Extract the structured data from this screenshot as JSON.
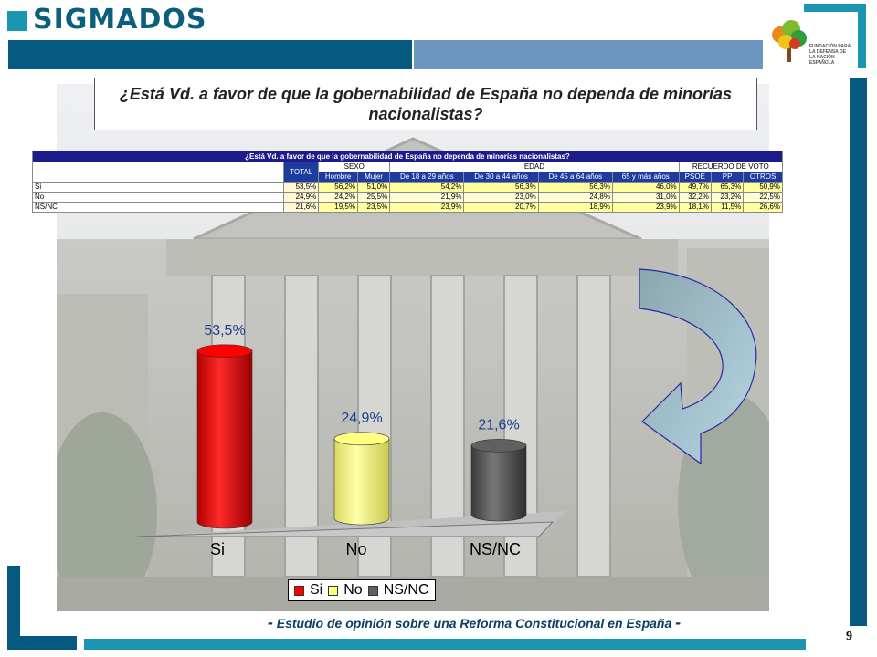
{
  "header": {
    "logo_text": "SIGMADOS"
  },
  "fund_logo": {
    "text": "FUNDACIÓN PARA LA DEFENSA DE LA NACIÓN ESPAÑOLA"
  },
  "question": "¿Está Vd. a favor de que la gobernabilidad de España no dependa de minorías nacionalistas?",
  "table": {
    "title": "¿Está Vd. a favor de que la gobernabilidad de España no dependa de minorías nacionalistas?",
    "total_label": "TOTAL",
    "groups": [
      "SEXO",
      "EDAD",
      "RECUERDO DE VOTO"
    ],
    "columns": [
      "Hombre",
      "Mujer",
      "De 18 a 29 años",
      "De 30 a 44 años",
      "De 45 a 64 años",
      "65 y más años",
      "PSOE",
      "PP",
      "OTROS"
    ],
    "rows": [
      {
        "label": "Si",
        "total": "53,5%",
        "values": [
          "56,2%",
          "51,0%",
          "54,2%",
          "56,3%",
          "56,3%",
          "46,0%",
          "49,7%",
          "65,3%",
          "50,9%"
        ]
      },
      {
        "label": "No",
        "total": "24,9%",
        "values": [
          "24,2%",
          "25,5%",
          "21,9%",
          "23,0%",
          "24,8%",
          "31,0%",
          "32,2%",
          "23,2%",
          "22,5%"
        ]
      },
      {
        "label": "NS/NC",
        "total": "21,6%",
        "values": [
          "19,5%",
          "23,5%",
          "23,9%",
          "20,7%",
          "18,9%",
          "23,9%",
          "18,1%",
          "11,5%",
          "26,6%"
        ]
      }
    ]
  },
  "chart_data": {
    "type": "bar",
    "categories": [
      "Si",
      "No",
      "NS/NC"
    ],
    "values": [
      53.5,
      24.9,
      21.6
    ],
    "value_labels": [
      "53,5%",
      "24,9%",
      "21,6%"
    ],
    "colors": [
      "#ff0000",
      "#ffff80",
      "#606060"
    ],
    "legend": [
      "Si",
      "No",
      "NS/NC"
    ],
    "legend_position": "bottom",
    "ylim": [
      0,
      60
    ],
    "style": "3d-cylinder"
  },
  "footer": {
    "text": "Estudio de opinión sobre una Reforma Constitucional en España",
    "dash": "-"
  },
  "page_number": "9"
}
